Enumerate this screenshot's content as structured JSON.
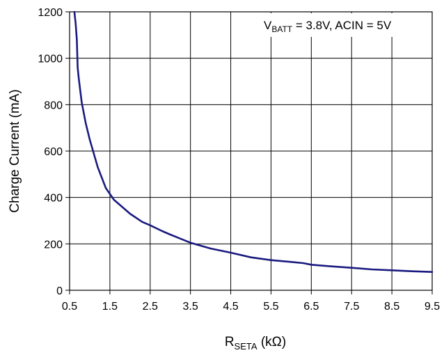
{
  "chart_data": {
    "type": "line",
    "title": "",
    "annotation": {
      "prefix": "V",
      "sub": "BATT",
      "rest": " = 3.8V, ACIN = 5V"
    },
    "xlabel": {
      "prefix": "R",
      "sub": "SETA",
      "rest": " (kΩ)"
    },
    "ylabel": "Charge Current (mA)",
    "xlim": [
      0.5,
      9.5
    ],
    "ylim": [
      0,
      1200
    ],
    "xticks": [
      "0.5",
      "1.5",
      "2.5",
      "3.5",
      "4.5",
      "5.5",
      "6.5",
      "7.5",
      "8.5",
      "9.5"
    ],
    "yticks": [
      "0",
      "200",
      "400",
      "600",
      "800",
      "1000",
      "1200"
    ],
    "grid": true,
    "line_color": "#1a1a80",
    "series": [
      {
        "x": [
          0.62,
          0.65,
          0.68,
          0.7,
          0.73,
          0.8,
          0.9,
          1.0,
          1.2,
          1.4,
          1.6,
          1.8,
          2.0,
          2.3,
          2.5,
          2.8,
          3.0,
          3.5,
          4.0,
          4.5,
          5.0,
          5.5,
          6.0,
          6.3,
          6.5,
          7.0,
          7.5,
          8.0,
          8.5,
          9.0,
          9.5
        ],
        "y": [
          1200,
          1150,
          1080,
          960,
          910,
          810,
          720,
          650,
          530,
          440,
          390,
          360,
          330,
          295,
          280,
          255,
          240,
          205,
          180,
          162,
          142,
          130,
          122,
          117,
          110,
          103,
          97,
          90,
          86,
          82,
          79
        ]
      }
    ]
  }
}
